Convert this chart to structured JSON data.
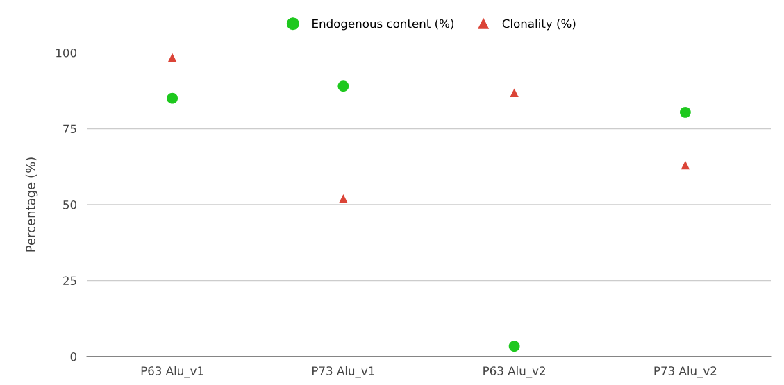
{
  "chart_data": {
    "type": "scatter",
    "ylabel": "Percentage (%)",
    "categories": [
      "P63 Alu_v1",
      "P73 Alu_v1",
      "P63 Alu_v2",
      "P73 Alu_v2"
    ],
    "series": [
      {
        "name": "Endogenous content (%)",
        "color": "#1ec81e",
        "marker": "circle",
        "values": [
          85,
          89,
          3.4,
          80.4
        ]
      },
      {
        "name": "Clonality (%)",
        "color": "#db4437",
        "marker": "triangle",
        "values": [
          98.4,
          52,
          86.8,
          63
        ]
      }
    ],
    "ylim": [
      0,
      100
    ],
    "yticks": [
      0,
      25,
      50,
      75,
      100
    ],
    "grid": "y",
    "legend": "top"
  }
}
